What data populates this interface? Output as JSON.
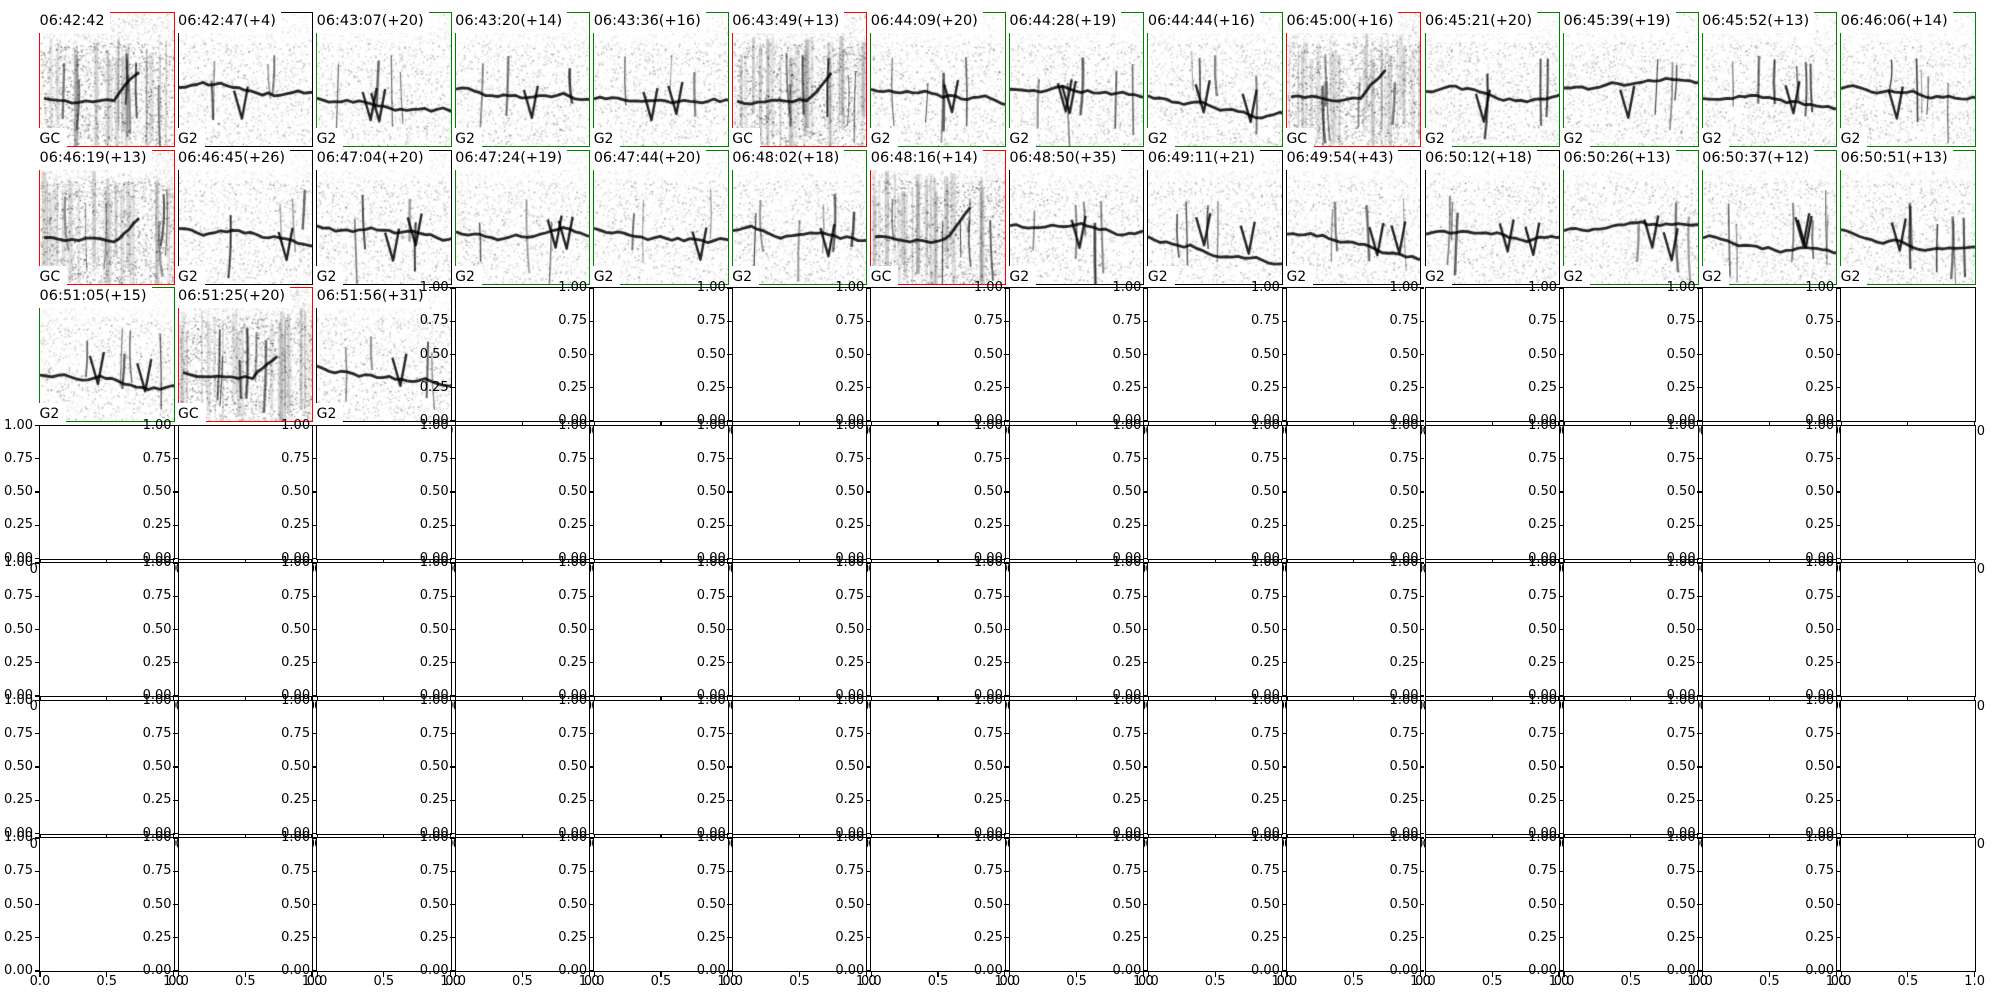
{
  "chart_data": {
    "type": "heatmap",
    "description": "Grid of 31 grayscale spectrogram thumbnails (rows 1-2 full, row 3 has 3) with timestamp titles, inter-call gap in seconds in parentheses, corner class labels, and colored review borders; all remaining grid axes are empty with default 0-1 ticks.",
    "layout": {
      "grid_rows": 7,
      "grid_cols": 14,
      "spectrogram_count": 31,
      "spectrograms_per_row": [
        14,
        14,
        3
      ]
    },
    "panels": [
      {
        "time": "06:42:42",
        "label": "GC",
        "border": "red"
      },
      {
        "time": "06:42:47(+4)",
        "label": "G2",
        "border": "black"
      },
      {
        "time": "06:43:07(+20)",
        "label": "G2",
        "border": "green"
      },
      {
        "time": "06:43:20(+14)",
        "label": "G2",
        "border": "green"
      },
      {
        "time": "06:43:36(+16)",
        "label": "G2",
        "border": "green"
      },
      {
        "time": "06:43:49(+13)",
        "label": "GC",
        "border": "red"
      },
      {
        "time": "06:44:09(+20)",
        "label": "G2",
        "border": "green"
      },
      {
        "time": "06:44:28(+19)",
        "label": "G2",
        "border": "green"
      },
      {
        "time": "06:44:44(+16)",
        "label": "G2",
        "border": "green"
      },
      {
        "time": "06:45:00(+16)",
        "label": "GC",
        "border": "red"
      },
      {
        "time": "06:45:21(+20)",
        "label": "G2",
        "border": "green"
      },
      {
        "time": "06:45:39(+19)",
        "label": "G2",
        "border": "green"
      },
      {
        "time": "06:45:52(+13)",
        "label": "G2",
        "border": "green"
      },
      {
        "time": "06:46:06(+14)",
        "label": "G2",
        "border": "green"
      },
      {
        "time": "06:46:19(+13)",
        "label": "GC",
        "border": "red"
      },
      {
        "time": "06:46:45(+26)",
        "label": "G2",
        "border": "black"
      },
      {
        "time": "06:47:04(+20)",
        "label": "G2",
        "border": "black"
      },
      {
        "time": "06:47:24(+19)",
        "label": "G2",
        "border": "green"
      },
      {
        "time": "06:47:44(+20)",
        "label": "G2",
        "border": "green"
      },
      {
        "time": "06:48:02(+18)",
        "label": "G2",
        "border": "green"
      },
      {
        "time": "06:48:16(+14)",
        "label": "GC",
        "border": "red"
      },
      {
        "time": "06:48:50(+35)",
        "label": "G2",
        "border": "black"
      },
      {
        "time": "06:49:11(+21)",
        "label": "G2",
        "border": "black"
      },
      {
        "time": "06:49:54(+43)",
        "label": "G2",
        "border": "black"
      },
      {
        "time": "06:50:12(+18)",
        "label": "G2",
        "border": "black"
      },
      {
        "time": "06:50:26(+13)",
        "label": "G2",
        "border": "green"
      },
      {
        "time": "06:50:37(+12)",
        "label": "G2",
        "border": "green"
      },
      {
        "time": "06:50:51(+13)",
        "label": "G2",
        "border": "green"
      },
      {
        "time": "06:51:05(+15)",
        "label": "G2",
        "border": "green"
      },
      {
        "time": "06:51:25(+20)",
        "label": "GC",
        "border": "red"
      },
      {
        "time": "06:51:56(+31)",
        "label": "G2",
        "border": "black"
      }
    ],
    "empty_axes": {
      "xlim": [
        0,
        1
      ],
      "ylim": [
        0,
        1
      ],
      "y_tick_labels": [
        "1.00",
        "0.75",
        "0.50",
        "0.25",
        "0.00"
      ],
      "x_tick_labels": [
        "0.0",
        "0.5",
        "1.0"
      ]
    }
  },
  "colors": {
    "red": "#ff0000",
    "green": "#008000",
    "black": "#000000"
  }
}
